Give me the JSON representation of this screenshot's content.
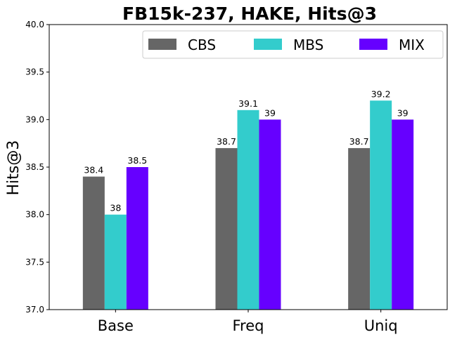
{
  "chart_data": {
    "type": "bar",
    "title": "FB15k-237, HAKE, Hits@3",
    "xlabel": "",
    "ylabel": "Hits@3",
    "ylim": [
      37.0,
      40.0
    ],
    "yticks": [
      "37.0",
      "37.5",
      "38.0",
      "38.5",
      "39.0",
      "39.5",
      "40.0"
    ],
    "categories": [
      "Base",
      "Freq",
      "Uniq"
    ],
    "series": [
      {
        "name": "CBS",
        "color": "#666666",
        "values": [
          38.4,
          38.7,
          38.7
        ],
        "labels": [
          "38.4",
          "38.7",
          "38.7"
        ]
      },
      {
        "name": "MBS",
        "color": "#33cccc",
        "values": [
          38.0,
          39.1,
          39.2
        ],
        "labels": [
          "38",
          "39.1",
          "39.2"
        ]
      },
      {
        "name": "MIX",
        "color": "#6600ff",
        "values": [
          38.5,
          39.0,
          39.0
        ],
        "labels": [
          "38.5",
          "39",
          "39"
        ]
      }
    ],
    "legend": {
      "position": "top-right",
      "columns": 3
    },
    "grid": false
  }
}
